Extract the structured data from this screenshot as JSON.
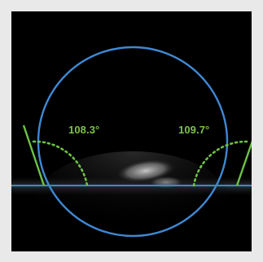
{
  "measurement": {
    "left_angle": "108.3°",
    "right_angle": "109.7°"
  },
  "colors": {
    "background": "#e9e9e9",
    "image_bg": "#000000",
    "circle": "#3f88d2",
    "baseline": "#2f8fca",
    "tangent": "#6cc244",
    "label": "#7cc24a"
  }
}
